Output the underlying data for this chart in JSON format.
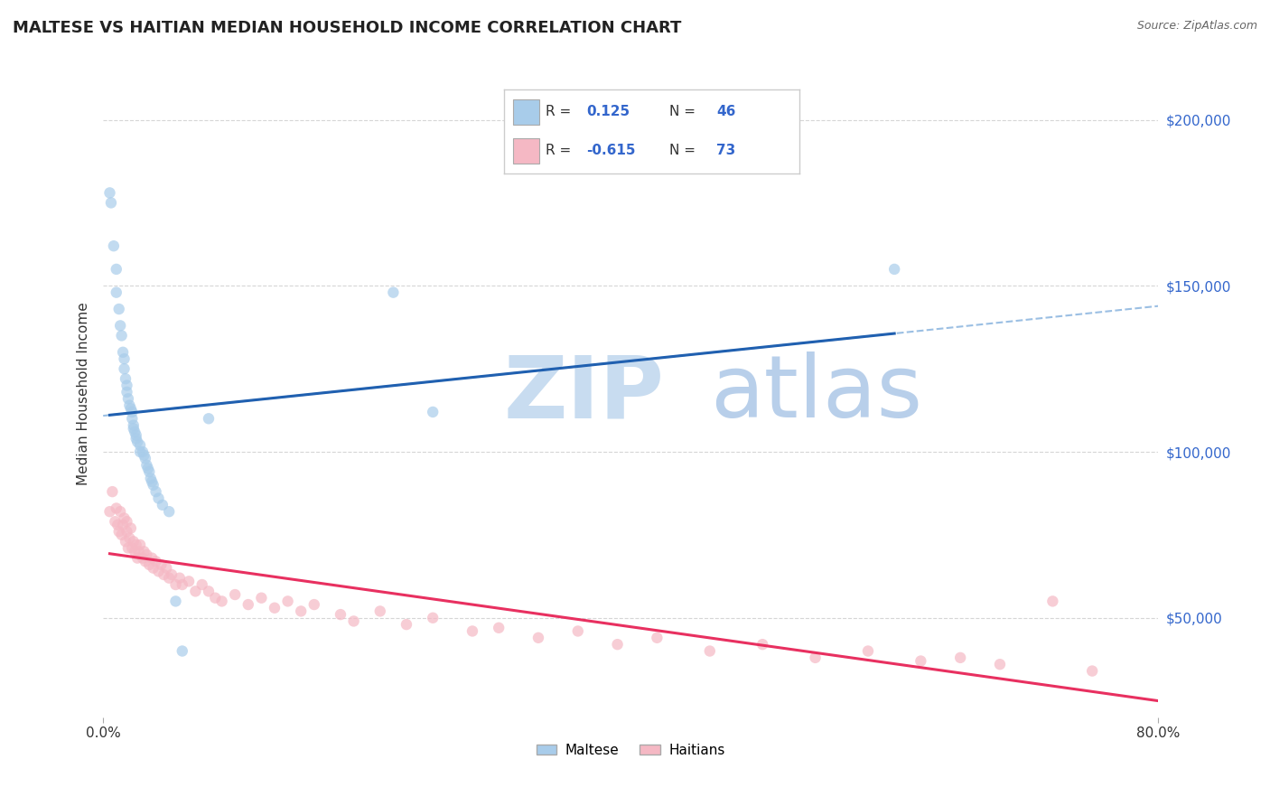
{
  "title": "MALTESE VS HAITIAN MEDIAN HOUSEHOLD INCOME CORRELATION CHART",
  "source_text": "Source: ZipAtlas.com",
  "ylabel": "Median Household Income",
  "xlim": [
    0.0,
    0.8
  ],
  "ylim": [
    20000,
    215000
  ],
  "yticks": [
    50000,
    100000,
    150000,
    200000
  ],
  "ytick_labels": [
    "$50,000",
    "$100,000",
    "$150,000",
    "$200,000"
  ],
  "R_maltese": 0.125,
  "N_maltese": 46,
  "R_haitian": -0.615,
  "N_haitian": 73,
  "maltese_color": "#A8CCEA",
  "haitian_color": "#F5B8C4",
  "maltese_line_color": "#2060B0",
  "haitian_line_color": "#E83060",
  "dashed_line_color": "#90B8E0",
  "background_color": "#FFFFFF",
  "grid_color": "#CCCCCC",
  "watermark_zip": "ZIP",
  "watermark_atlas": "atlas",
  "watermark_color_zip": "#C5D8EE",
  "watermark_color_atlas": "#B8CFEA",
  "legend_label_maltese": "Maltese",
  "legend_label_haitian": "Haitians",
  "maltese_x": [
    0.005,
    0.006,
    0.008,
    0.01,
    0.01,
    0.012,
    0.013,
    0.014,
    0.015,
    0.016,
    0.016,
    0.017,
    0.018,
    0.018,
    0.019,
    0.02,
    0.021,
    0.022,
    0.022,
    0.023,
    0.023,
    0.024,
    0.025,
    0.025,
    0.026,
    0.028,
    0.028,
    0.03,
    0.031,
    0.032,
    0.033,
    0.034,
    0.035,
    0.036,
    0.037,
    0.038,
    0.04,
    0.042,
    0.045,
    0.05,
    0.055,
    0.06,
    0.08,
    0.22,
    0.25,
    0.6
  ],
  "maltese_y": [
    178000,
    175000,
    162000,
    155000,
    148000,
    143000,
    138000,
    135000,
    130000,
    128000,
    125000,
    122000,
    120000,
    118000,
    116000,
    114000,
    113000,
    112000,
    110000,
    108000,
    107000,
    106000,
    105000,
    104000,
    103000,
    102000,
    100000,
    100000,
    99000,
    98000,
    96000,
    95000,
    94000,
    92000,
    91000,
    90000,
    88000,
    86000,
    84000,
    82000,
    55000,
    40000,
    110000,
    148000,
    112000,
    155000
  ],
  "haitian_x": [
    0.005,
    0.007,
    0.009,
    0.01,
    0.011,
    0.012,
    0.013,
    0.014,
    0.015,
    0.016,
    0.017,
    0.018,
    0.018,
    0.019,
    0.02,
    0.021,
    0.022,
    0.023,
    0.024,
    0.025,
    0.026,
    0.027,
    0.028,
    0.03,
    0.031,
    0.032,
    0.033,
    0.035,
    0.037,
    0.038,
    0.04,
    0.042,
    0.044,
    0.046,
    0.048,
    0.05,
    0.052,
    0.055,
    0.058,
    0.06,
    0.065,
    0.07,
    0.075,
    0.08,
    0.085,
    0.09,
    0.1,
    0.11,
    0.12,
    0.13,
    0.14,
    0.15,
    0.16,
    0.18,
    0.19,
    0.21,
    0.23,
    0.25,
    0.28,
    0.3,
    0.33,
    0.36,
    0.39,
    0.42,
    0.46,
    0.5,
    0.54,
    0.58,
    0.62,
    0.65,
    0.68,
    0.72,
    0.75
  ],
  "haitian_y": [
    82000,
    88000,
    79000,
    83000,
    78000,
    76000,
    82000,
    75000,
    78000,
    80000,
    73000,
    76000,
    79000,
    71000,
    74000,
    77000,
    71000,
    73000,
    70000,
    72000,
    68000,
    70000,
    72000,
    68000,
    70000,
    67000,
    69000,
    66000,
    68000,
    65000,
    67000,
    64000,
    66000,
    63000,
    65000,
    62000,
    63000,
    60000,
    62000,
    60000,
    61000,
    58000,
    60000,
    58000,
    56000,
    55000,
    57000,
    54000,
    56000,
    53000,
    55000,
    52000,
    54000,
    51000,
    49000,
    52000,
    48000,
    50000,
    46000,
    47000,
    44000,
    46000,
    42000,
    44000,
    40000,
    42000,
    38000,
    40000,
    37000,
    38000,
    36000,
    55000,
    34000
  ]
}
